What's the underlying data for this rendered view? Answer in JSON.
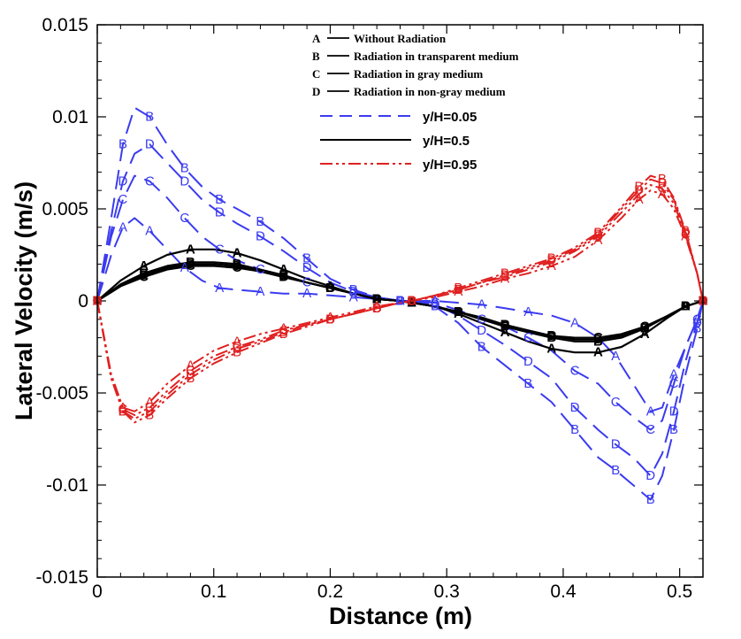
{
  "chart_data": {
    "type": "line",
    "title": "",
    "xlabel": "Distance (m)",
    "ylabel": "Lateral Velocity (m/s)",
    "xlim": [
      0,
      0.52
    ],
    "ylim": [
      -0.015,
      0.015
    ],
    "x_ticks": [
      0,
      0.1,
      0.2,
      0.3,
      0.4,
      0.5
    ],
    "x_tick_labels": [
      "0",
      "0.1",
      "0.2",
      "0.3",
      "0.4",
      "0.5"
    ],
    "y_ticks": [
      -0.015,
      -0.01,
      -0.005,
      0,
      0.005,
      0.01,
      0.015
    ],
    "y_tick_labels": [
      "-0.015",
      "-0.01",
      "-0.005",
      "0",
      "0.005",
      "0.01",
      "0.015"
    ],
    "case_legend": [
      {
        "letter": "A",
        "label": "Without Radiation"
      },
      {
        "letter": "B",
        "label": "Radiation in transparent medium"
      },
      {
        "letter": "C",
        "label": "Radiation in gray medium"
      },
      {
        "letter": "D",
        "label": "Radiation in non-gray medium"
      }
    ],
    "style_legend": [
      {
        "label": "y/H=0.05",
        "color": "#3b3bf0",
        "dash": "dashed"
      },
      {
        "label": "y/H=0.5",
        "color": "#000000",
        "dash": "solid"
      },
      {
        "label": "y/H=0.95",
        "color": "#e02020",
        "dash": "dashdot"
      }
    ],
    "series": [
      {
        "name": "y/H=0.05 A",
        "group": "low",
        "case": "A",
        "x": [
          0,
          0.012,
          0.022,
          0.032,
          0.045,
          0.06,
          0.075,
          0.09,
          0.105,
          0.12,
          0.14,
          0.16,
          0.18,
          0.2,
          0.22,
          0.24,
          0.26,
          0.27,
          0.29,
          0.31,
          0.33,
          0.35,
          0.37,
          0.39,
          0.41,
          0.43,
          0.445,
          0.46,
          0.475,
          0.485,
          0.495,
          0.505,
          0.515,
          0.52
        ],
        "y": [
          0,
          0.0025,
          0.004,
          0.0045,
          0.0038,
          0.0028,
          0.0018,
          0.0011,
          0.0007,
          0.0006,
          0.0005,
          0.0004,
          0.0004,
          0.0003,
          0.0002,
          0.0001,
          0,
          0,
          0,
          -0.0001,
          -0.0002,
          -0.0004,
          -0.0006,
          -0.0008,
          -0.0012,
          -0.002,
          -0.003,
          -0.0045,
          -0.006,
          -0.0058,
          -0.004,
          -0.0025,
          -0.001,
          0
        ]
      },
      {
        "name": "y/H=0.05 B",
        "group": "low",
        "case": "B",
        "x": [
          0,
          0.012,
          0.022,
          0.032,
          0.045,
          0.06,
          0.075,
          0.09,
          0.105,
          0.12,
          0.14,
          0.16,
          0.18,
          0.2,
          0.22,
          0.24,
          0.26,
          0.27,
          0.29,
          0.31,
          0.33,
          0.35,
          0.37,
          0.39,
          0.41,
          0.43,
          0.445,
          0.46,
          0.475,
          0.485,
          0.495,
          0.505,
          0.515,
          0.52
        ],
        "y": [
          0,
          0.0045,
          0.0085,
          0.0105,
          0.01,
          0.0085,
          0.0072,
          0.0062,
          0.0055,
          0.005,
          0.0043,
          0.0034,
          0.0023,
          0.0012,
          0.0006,
          0.0002,
          0,
          0,
          -0.0003,
          -0.0012,
          -0.0025,
          -0.0035,
          -0.0045,
          -0.0055,
          -0.007,
          -0.0085,
          -0.0092,
          -0.01,
          -0.0108,
          -0.0095,
          -0.007,
          -0.004,
          -0.0015,
          0
        ]
      },
      {
        "name": "y/H=0.05 C",
        "group": "low",
        "case": "C",
        "x": [
          0,
          0.012,
          0.022,
          0.032,
          0.045,
          0.06,
          0.075,
          0.09,
          0.105,
          0.12,
          0.14,
          0.16,
          0.18,
          0.2,
          0.22,
          0.24,
          0.26,
          0.27,
          0.29,
          0.31,
          0.33,
          0.35,
          0.37,
          0.39,
          0.41,
          0.43,
          0.445,
          0.46,
          0.475,
          0.485,
          0.495,
          0.505,
          0.515,
          0.52
        ],
        "y": [
          0,
          0.0035,
          0.0055,
          0.0068,
          0.0065,
          0.0056,
          0.0045,
          0.0035,
          0.0028,
          0.0022,
          0.0017,
          0.0013,
          0.001,
          0.0007,
          0.0004,
          0.0002,
          0,
          0,
          -0.0001,
          -0.0005,
          -0.001,
          -0.0014,
          -0.002,
          -0.0027,
          -0.0038,
          -0.0045,
          -0.0055,
          -0.0063,
          -0.007,
          -0.0065,
          -0.0045,
          -0.0025,
          -0.001,
          0
        ]
      },
      {
        "name": "y/H=0.05 D",
        "group": "low",
        "case": "D",
        "x": [
          0,
          0.012,
          0.022,
          0.032,
          0.045,
          0.06,
          0.075,
          0.09,
          0.105,
          0.12,
          0.14,
          0.16,
          0.18,
          0.2,
          0.22,
          0.24,
          0.26,
          0.27,
          0.29,
          0.31,
          0.33,
          0.35,
          0.37,
          0.39,
          0.41,
          0.43,
          0.445,
          0.46,
          0.475,
          0.485,
          0.495,
          0.505,
          0.515,
          0.52
        ],
        "y": [
          0,
          0.0038,
          0.0065,
          0.008,
          0.0085,
          0.0075,
          0.0065,
          0.0055,
          0.0048,
          0.0042,
          0.0035,
          0.0027,
          0.0018,
          0.001,
          0.0005,
          0.0002,
          0,
          0,
          -0.0002,
          -0.0008,
          -0.0016,
          -0.0024,
          -0.0033,
          -0.0042,
          -0.0058,
          -0.007,
          -0.0078,
          -0.0085,
          -0.0095,
          -0.0083,
          -0.006,
          -0.0033,
          -0.0012,
          0
        ]
      },
      {
        "name": "y/H=0.5 A",
        "group": "mid",
        "case": "A",
        "x": [
          0,
          0.02,
          0.04,
          0.06,
          0.08,
          0.1,
          0.12,
          0.14,
          0.16,
          0.18,
          0.2,
          0.22,
          0.24,
          0.26,
          0.27,
          0.29,
          0.31,
          0.33,
          0.35,
          0.37,
          0.39,
          0.41,
          0.43,
          0.45,
          0.47,
          0.49,
          0.505,
          0.52
        ],
        "y": [
          0,
          0.0011,
          0.0019,
          0.0025,
          0.0028,
          0.0028,
          0.0026,
          0.0022,
          0.0017,
          0.0012,
          0.0008,
          0.0004,
          0.0001,
          0,
          -0.0001,
          -0.0003,
          -0.0007,
          -0.0012,
          -0.0017,
          -0.0022,
          -0.0026,
          -0.0028,
          -0.0028,
          -0.0025,
          -0.0018,
          -0.0009,
          -0.0003,
          0
        ]
      },
      {
        "name": "y/H=0.5 B",
        "group": "mid",
        "case": "B",
        "x": [
          0,
          0.02,
          0.04,
          0.06,
          0.08,
          0.1,
          0.12,
          0.14,
          0.16,
          0.18,
          0.2,
          0.22,
          0.24,
          0.26,
          0.27,
          0.29,
          0.31,
          0.33,
          0.35,
          0.37,
          0.39,
          0.41,
          0.43,
          0.45,
          0.47,
          0.49,
          0.505,
          0.52
        ],
        "y": [
          0,
          0.0009,
          0.0015,
          0.0019,
          0.0021,
          0.0021,
          0.002,
          0.0017,
          0.0014,
          0.001,
          0.0007,
          0.0004,
          0.0001,
          0,
          -0.0001,
          -0.0003,
          -0.0006,
          -0.001,
          -0.0014,
          -0.0017,
          -0.002,
          -0.0022,
          -0.0022,
          -0.002,
          -0.0015,
          -0.0008,
          -0.0003,
          0
        ]
      },
      {
        "name": "y/H=0.5 C",
        "group": "mid",
        "case": "C",
        "x": [
          0,
          0.02,
          0.04,
          0.06,
          0.08,
          0.1,
          0.12,
          0.14,
          0.16,
          0.18,
          0.2,
          0.22,
          0.24,
          0.26,
          0.27,
          0.29,
          0.31,
          0.33,
          0.35,
          0.37,
          0.39,
          0.41,
          0.43,
          0.45,
          0.47,
          0.49,
          0.505,
          0.52
        ],
        "y": [
          0,
          0.0008,
          0.0013,
          0.0017,
          0.0019,
          0.0019,
          0.0018,
          0.0016,
          0.0013,
          0.001,
          0.0007,
          0.0004,
          0.0001,
          0,
          -0.0001,
          -0.0003,
          -0.0006,
          -0.0009,
          -0.0013,
          -0.0016,
          -0.0019,
          -0.002,
          -0.002,
          -0.0018,
          -0.0014,
          -0.0008,
          -0.0003,
          0
        ]
      },
      {
        "name": "y/H=0.5 D",
        "group": "mid",
        "case": "D",
        "x": [
          0,
          0.02,
          0.04,
          0.06,
          0.08,
          0.1,
          0.12,
          0.14,
          0.16,
          0.18,
          0.2,
          0.22,
          0.24,
          0.26,
          0.27,
          0.29,
          0.31,
          0.33,
          0.35,
          0.37,
          0.39,
          0.41,
          0.43,
          0.45,
          0.47,
          0.49,
          0.505,
          0.52
        ],
        "y": [
          0,
          0.0008,
          0.0014,
          0.0018,
          0.002,
          0.002,
          0.0019,
          0.0016,
          0.0013,
          0.001,
          0.0007,
          0.0004,
          0.0001,
          0,
          -0.0001,
          -0.0003,
          -0.0006,
          -0.001,
          -0.0013,
          -0.0017,
          -0.0019,
          -0.0021,
          -0.0021,
          -0.0019,
          -0.0015,
          -0.0008,
          -0.0003,
          0
        ]
      },
      {
        "name": "y/H=0.95 A",
        "group": "high",
        "case": "A",
        "x": [
          0,
          0.012,
          0.022,
          0.032,
          0.045,
          0.06,
          0.08,
          0.1,
          0.12,
          0.14,
          0.16,
          0.18,
          0.2,
          0.22,
          0.24,
          0.26,
          0.27,
          0.29,
          0.31,
          0.33,
          0.35,
          0.37,
          0.39,
          0.41,
          0.43,
          0.45,
          0.465,
          0.475,
          0.485,
          0.495,
          0.505,
          0.515,
          0.52
        ],
        "y": [
          0,
          -0.004,
          -0.0058,
          -0.006,
          -0.0055,
          -0.0045,
          -0.0035,
          -0.0027,
          -0.0022,
          -0.0018,
          -0.0015,
          -0.0012,
          -0.0009,
          -0.0006,
          -0.0003,
          -0.0001,
          0,
          0.0002,
          0.0005,
          0.0008,
          0.0012,
          0.0015,
          0.0019,
          0.0024,
          0.0033,
          0.0045,
          0.0055,
          0.006,
          0.0058,
          0.005,
          0.0035,
          0.0015,
          0
        ]
      },
      {
        "name": "y/H=0.95 B",
        "group": "high",
        "case": "B",
        "x": [
          0,
          0.012,
          0.022,
          0.032,
          0.045,
          0.06,
          0.08,
          0.1,
          0.12,
          0.14,
          0.16,
          0.18,
          0.2,
          0.22,
          0.24,
          0.26,
          0.27,
          0.29,
          0.31,
          0.33,
          0.35,
          0.37,
          0.39,
          0.41,
          0.43,
          0.45,
          0.465,
          0.475,
          0.485,
          0.495,
          0.505,
          0.515,
          0.52
        ],
        "y": [
          0,
          -0.0042,
          -0.006,
          -0.0066,
          -0.0062,
          -0.0053,
          -0.0042,
          -0.0034,
          -0.0028,
          -0.0023,
          -0.0018,
          -0.0014,
          -0.001,
          -0.0007,
          -0.0004,
          -0.0001,
          0,
          0.0003,
          0.0007,
          0.0011,
          0.0015,
          0.0019,
          0.0023,
          0.0029,
          0.0037,
          0.0051,
          0.0062,
          0.0068,
          0.0066,
          0.0056,
          0.0038,
          0.0015,
          0
        ]
      },
      {
        "name": "y/H=0.95 C",
        "group": "high",
        "case": "C",
        "x": [
          0,
          0.012,
          0.022,
          0.032,
          0.045,
          0.06,
          0.08,
          0.1,
          0.12,
          0.14,
          0.16,
          0.18,
          0.2,
          0.22,
          0.24,
          0.26,
          0.27,
          0.29,
          0.31,
          0.33,
          0.35,
          0.37,
          0.39,
          0.41,
          0.43,
          0.45,
          0.465,
          0.475,
          0.485,
          0.495,
          0.505,
          0.515,
          0.52
        ],
        "y": [
          0,
          -0.0041,
          -0.0059,
          -0.0062,
          -0.0058,
          -0.0049,
          -0.0038,
          -0.003,
          -0.0025,
          -0.0021,
          -0.0016,
          -0.0013,
          -0.001,
          -0.0007,
          -0.0004,
          -0.0001,
          0,
          0.0003,
          0.0006,
          0.001,
          0.0013,
          0.0017,
          0.0021,
          0.0027,
          0.0035,
          0.0048,
          0.0058,
          0.0063,
          0.0061,
          0.0053,
          0.0036,
          0.0015,
          0
        ]
      },
      {
        "name": "y/H=0.95 D",
        "group": "high",
        "case": "D",
        "x": [
          0,
          0.012,
          0.022,
          0.032,
          0.045,
          0.06,
          0.08,
          0.1,
          0.12,
          0.14,
          0.16,
          0.18,
          0.2,
          0.22,
          0.24,
          0.26,
          0.27,
          0.29,
          0.31,
          0.33,
          0.35,
          0.37,
          0.39,
          0.41,
          0.43,
          0.45,
          0.465,
          0.475,
          0.485,
          0.495,
          0.505,
          0.515,
          0.52
        ],
        "y": [
          0,
          -0.0042,
          -0.006,
          -0.0064,
          -0.006,
          -0.0051,
          -0.004,
          -0.0032,
          -0.0026,
          -0.0022,
          -0.0017,
          -0.0013,
          -0.001,
          -0.0007,
          -0.0004,
          -0.0001,
          0,
          0.0003,
          0.0006,
          0.001,
          0.0014,
          0.0018,
          0.0022,
          0.0028,
          0.0036,
          0.005,
          0.006,
          0.0066,
          0.0064,
          0.0055,
          0.0037,
          0.0015,
          0
        ]
      }
    ]
  }
}
